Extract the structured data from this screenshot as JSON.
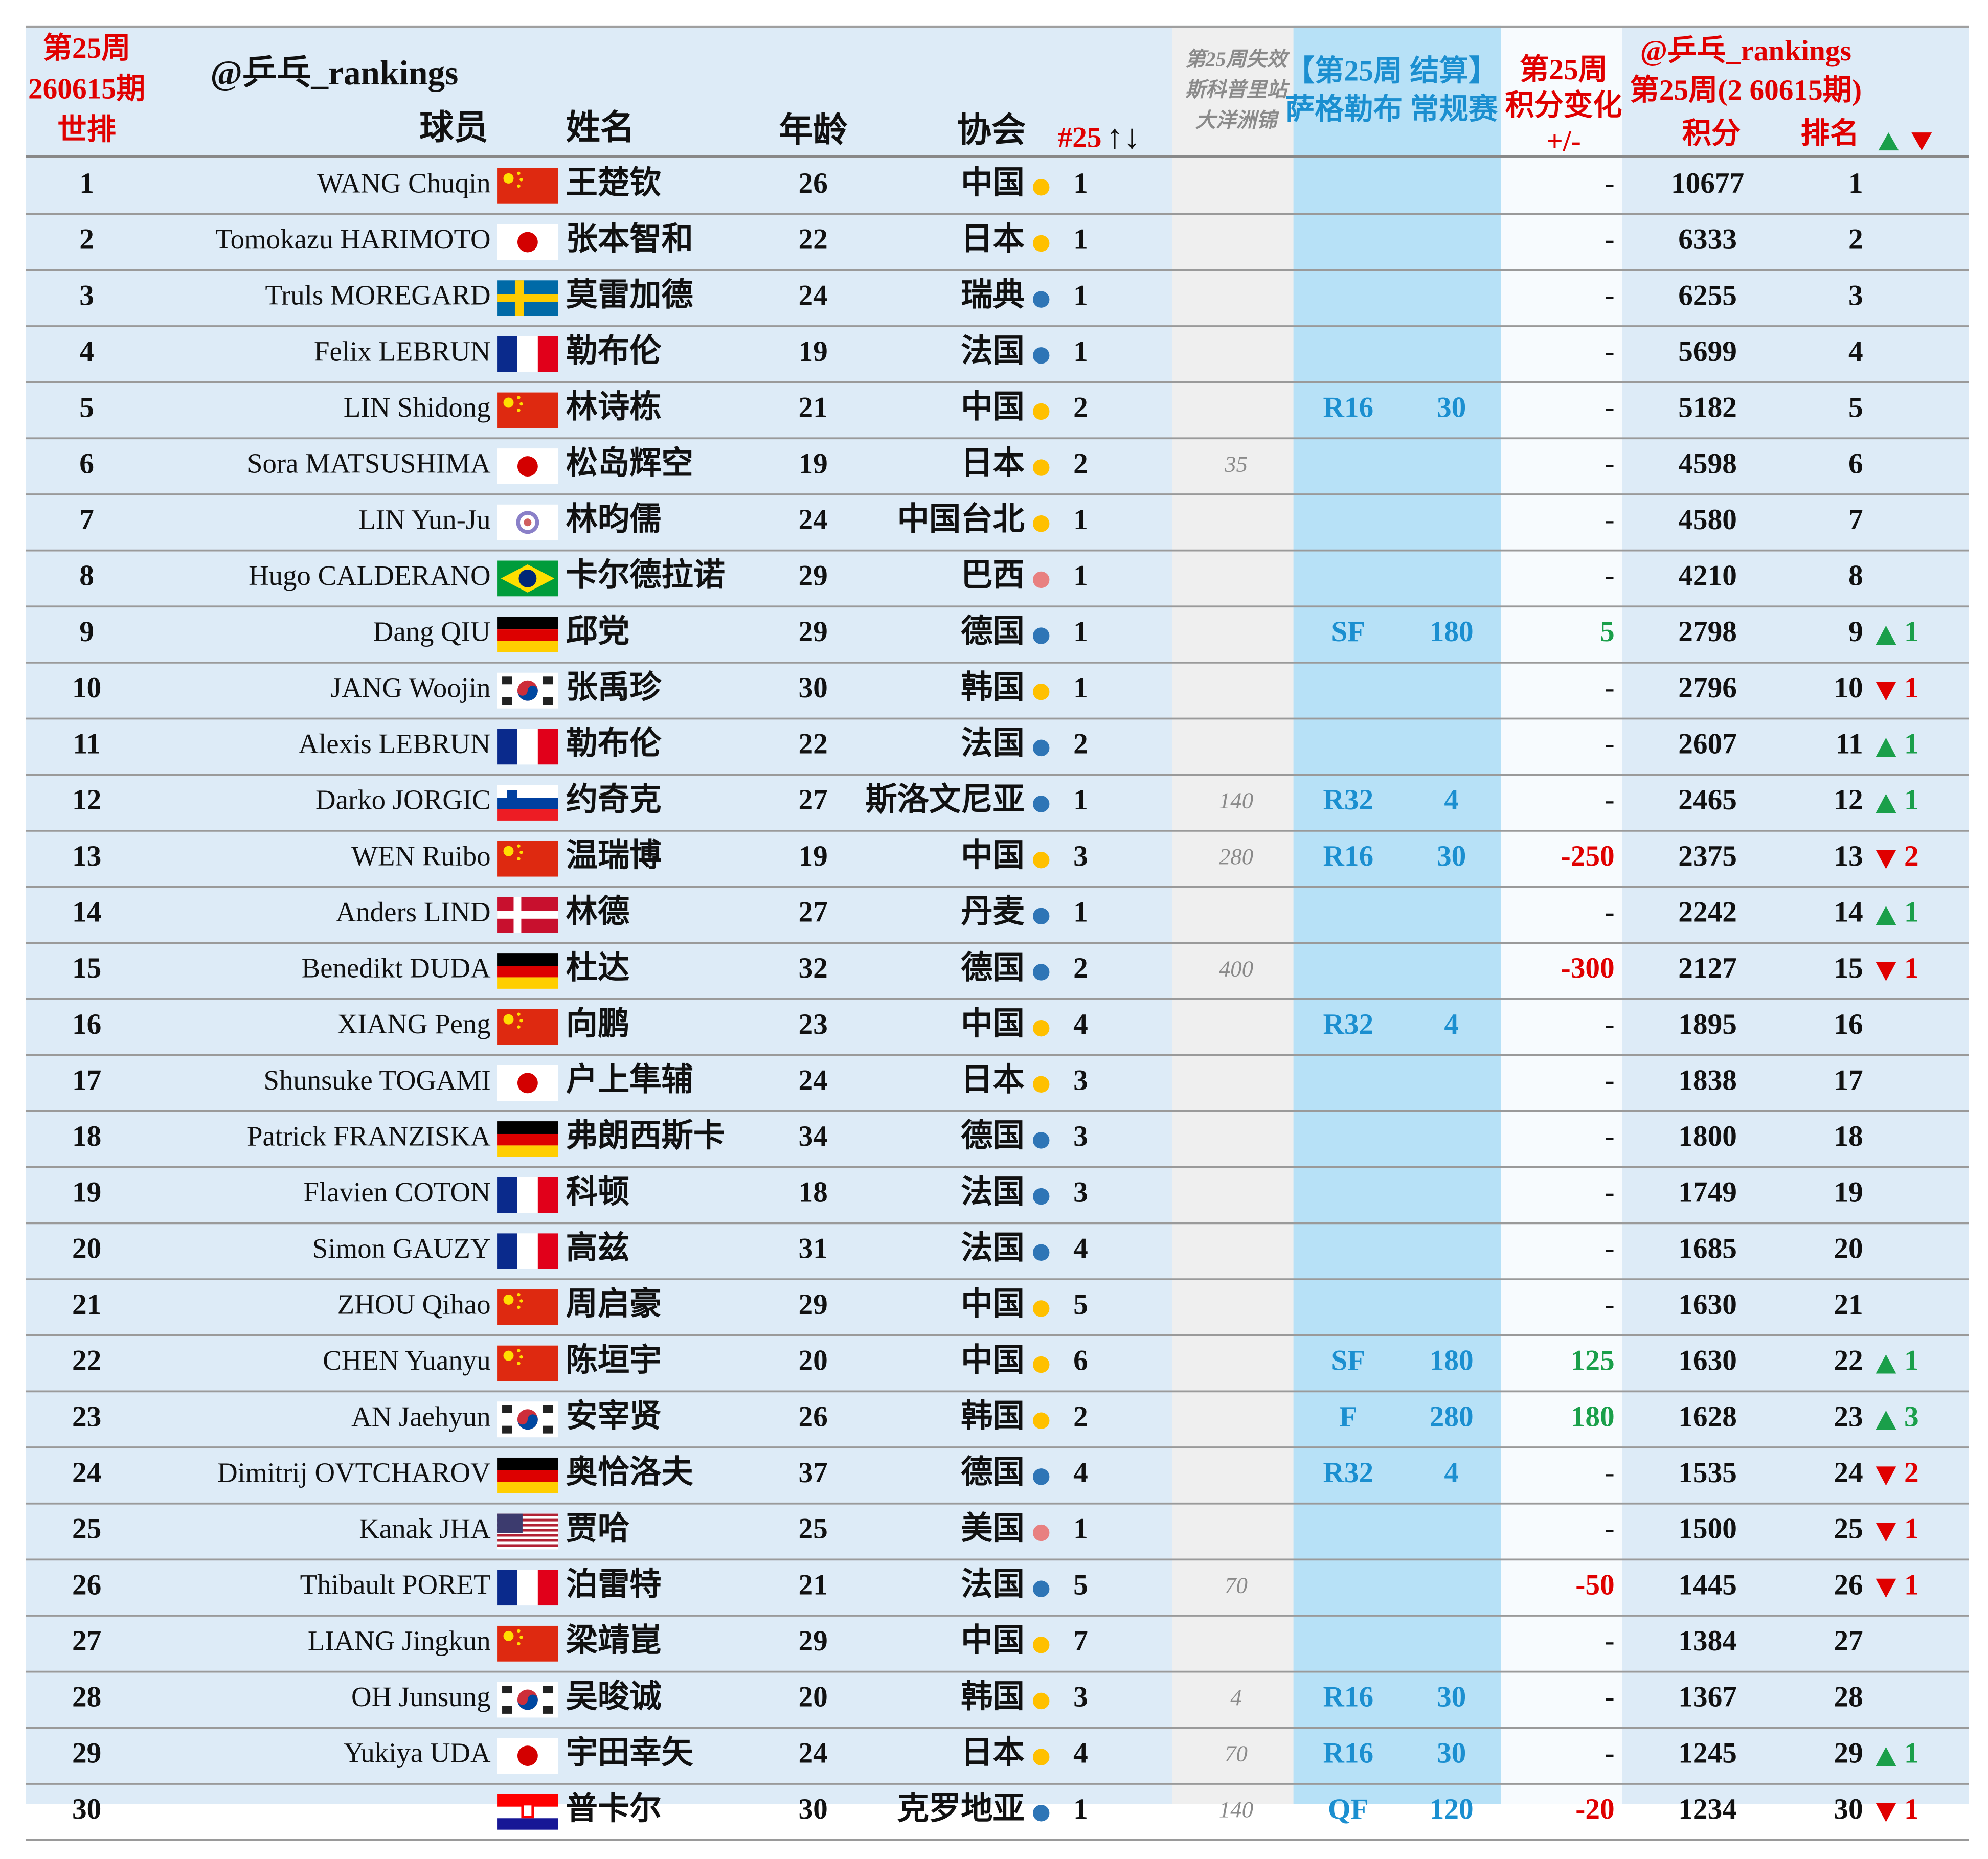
{
  "header": {
    "rank_lines": [
      "第25周",
      "260615期",
      "世排"
    ],
    "handle": "@乒乓_rankings",
    "player": "球员",
    "name": "姓名",
    "age": "年龄",
    "assoc": "协会",
    "n25": "#25",
    "n25_arrows": "↑↓",
    "lost_lines": [
      "第25周失效",
      "斯科普里站",
      "大洋洲锦"
    ],
    "event_lines": [
      "【第25周 结算】",
      "萨格勒布 常规赛"
    ],
    "change_lines": [
      "第25周",
      "积分变化",
      "+/-"
    ],
    "right_lines": [
      "@乒乓_rankings",
      "第25周(2 60615期)"
    ],
    "points": "积分",
    "rank": "排名"
  },
  "rows": [
    {
      "rank": 1,
      "en": "WANG Chuqin",
      "zh": "王楚钦",
      "age": 26,
      "assoc": "中国",
      "dot": "#ffc000",
      "n25": 1,
      "change": "-",
      "points": 10677,
      "new_rank": 1,
      "flag": "cn"
    },
    {
      "rank": 2,
      "en": "Tomokazu HARIMOTO",
      "zh": "张本智和",
      "age": 22,
      "assoc": "日本",
      "dot": "#ffc000",
      "n25": 1,
      "change": "-",
      "points": 6333,
      "new_rank": 2,
      "flag": "jp"
    },
    {
      "rank": 3,
      "en": "Truls MOREGARD",
      "zh": "莫雷加德",
      "age": 24,
      "assoc": "瑞典",
      "dot": "#2e75b6",
      "n25": 1,
      "change": "-",
      "points": 6255,
      "new_rank": 3,
      "flag": "se"
    },
    {
      "rank": 4,
      "en": "Felix LEBRUN",
      "zh": "勒布伦",
      "age": 19,
      "assoc": "法国",
      "dot": "#2e75b6",
      "n25": 1,
      "change": "-",
      "points": 5699,
      "new_rank": 4,
      "flag": "fr"
    },
    {
      "rank": 5,
      "en": "LIN Shidong",
      "zh": "林诗栋",
      "age": 21,
      "assoc": "中国",
      "dot": "#ffc000",
      "n25": 2,
      "round": "R16",
      "pts": 30,
      "change": "-",
      "points": 5182,
      "new_rank": 5,
      "flag": "cn"
    },
    {
      "rank": 6,
      "en": "Sora MATSUSHIMA",
      "zh": "松岛辉空",
      "age": 19,
      "assoc": "日本",
      "dot": "#ffc000",
      "n25": 2,
      "lost": 35,
      "change": "-",
      "points": 4598,
      "new_rank": 6,
      "flag": "jp"
    },
    {
      "rank": 7,
      "en": "LIN Yun-Ju",
      "zh": "林昀儒",
      "age": 24,
      "assoc": "中国台北",
      "dot": "#ffc000",
      "n25": 1,
      "change": "-",
      "points": 4580,
      "new_rank": 7,
      "flag": "tw"
    },
    {
      "rank": 8,
      "en": "Hugo CALDERANO",
      "zh": "卡尔德拉诺",
      "age": 29,
      "assoc": "巴西",
      "dot": "#e88080",
      "n25": 1,
      "change": "-",
      "points": 4210,
      "new_rank": 8,
      "flag": "br"
    },
    {
      "rank": 9,
      "en": "Dang QIU",
      "zh": "邱党",
      "age": 29,
      "assoc": "德国",
      "dot": "#2e75b6",
      "n25": 1,
      "round": "SF",
      "pts": 180,
      "change": 5,
      "points": 2798,
      "new_rank": 9,
      "move": "up",
      "move_n": 1,
      "flag": "de"
    },
    {
      "rank": 10,
      "en": "JANG Woojin",
      "zh": "张禹珍",
      "age": 30,
      "assoc": "韩国",
      "dot": "#ffc000",
      "n25": 1,
      "change": "-",
      "points": 2796,
      "new_rank": 10,
      "move": "down",
      "move_n": 1,
      "flag": "kr"
    },
    {
      "rank": 11,
      "en": "Alexis LEBRUN",
      "zh": "勒布伦",
      "age": 22,
      "assoc": "法国",
      "dot": "#2e75b6",
      "n25": 2,
      "change": "-",
      "points": 2607,
      "new_rank": 11,
      "move": "up",
      "move_n": 1,
      "flag": "fr"
    },
    {
      "rank": 12,
      "en": "Darko JORGIC",
      "zh": "约奇克",
      "age": 27,
      "assoc": "斯洛文尼亚",
      "dot": "#2e75b6",
      "n25": 1,
      "lost": 140,
      "round": "R32",
      "pts": 4,
      "change": "-",
      "points": 2465,
      "new_rank": 12,
      "move": "up",
      "move_n": 1,
      "flag": "si"
    },
    {
      "rank": 13,
      "en": "WEN Ruibo",
      "zh": "温瑞博",
      "age": 19,
      "assoc": "中国",
      "dot": "#ffc000",
      "n25": 3,
      "lost": 280,
      "round": "R16",
      "pts": 30,
      "change": -250,
      "points": 2375,
      "new_rank": 13,
      "move": "down",
      "move_n": 2,
      "flag": "cn"
    },
    {
      "rank": 14,
      "en": "Anders LIND",
      "zh": "林德",
      "age": 27,
      "assoc": "丹麦",
      "dot": "#2e75b6",
      "n25": 1,
      "change": "-",
      "points": 2242,
      "new_rank": 14,
      "move": "up",
      "move_n": 1,
      "flag": "dk"
    },
    {
      "rank": 15,
      "en": "Benedikt DUDA",
      "zh": "杜达",
      "age": 32,
      "assoc": "德国",
      "dot": "#2e75b6",
      "n25": 2,
      "lost": 400,
      "change": -300,
      "points": 2127,
      "new_rank": 15,
      "move": "down",
      "move_n": 1,
      "flag": "de"
    },
    {
      "rank": 16,
      "en": "XIANG Peng",
      "zh": "向鹏",
      "age": 23,
      "assoc": "中国",
      "dot": "#ffc000",
      "n25": 4,
      "round": "R32",
      "pts": 4,
      "change": "-",
      "points": 1895,
      "new_rank": 16,
      "flag": "cn"
    },
    {
      "rank": 17,
      "en": "Shunsuke TOGAMI",
      "zh": "户上隼辅",
      "age": 24,
      "assoc": "日本",
      "dot": "#ffc000",
      "n25": 3,
      "change": "-",
      "points": 1838,
      "new_rank": 17,
      "flag": "jp"
    },
    {
      "rank": 18,
      "en": "Patrick FRANZISKA",
      "zh": "弗朗西斯卡",
      "age": 34,
      "assoc": "德国",
      "dot": "#2e75b6",
      "n25": 3,
      "change": "-",
      "points": 1800,
      "new_rank": 18,
      "flag": "de"
    },
    {
      "rank": 19,
      "en": "Flavien COTON",
      "zh": "科顿",
      "age": 18,
      "assoc": "法国",
      "dot": "#2e75b6",
      "n25": 3,
      "change": "-",
      "points": 1749,
      "new_rank": 19,
      "flag": "fr"
    },
    {
      "rank": 20,
      "en": "Simon GAUZY",
      "zh": "高兹",
      "age": 31,
      "assoc": "法国",
      "dot": "#2e75b6",
      "n25": 4,
      "change": "-",
      "points": 1685,
      "new_rank": 20,
      "flag": "fr"
    },
    {
      "rank": 21,
      "en": "ZHOU Qihao",
      "zh": "周启豪",
      "age": 29,
      "assoc": "中国",
      "dot": "#ffc000",
      "n25": 5,
      "change": "-",
      "points": 1630,
      "new_rank": 21,
      "flag": "cn"
    },
    {
      "rank": 22,
      "en": "CHEN Yuanyu",
      "zh": "陈垣宇",
      "age": 20,
      "assoc": "中国",
      "dot": "#ffc000",
      "n25": 6,
      "round": "SF",
      "pts": 180,
      "change": 125,
      "points": 1630,
      "new_rank": 22,
      "move": "up",
      "move_n": 1,
      "flag": "cn"
    },
    {
      "rank": 23,
      "en": "AN Jaehyun",
      "zh": "安宰贤",
      "age": 26,
      "assoc": "韩国",
      "dot": "#ffc000",
      "n25": 2,
      "round": "F",
      "pts": 280,
      "change": 180,
      "points": 1628,
      "new_rank": 23,
      "move": "up",
      "move_n": 3,
      "flag": "kr"
    },
    {
      "rank": 24,
      "en": "Dimitrij OVTCHAROV",
      "zh": "奥恰洛夫",
      "age": 37,
      "assoc": "德国",
      "dot": "#2e75b6",
      "n25": 4,
      "round": "R32",
      "pts": 4,
      "change": "-",
      "points": 1535,
      "new_rank": 24,
      "move": "down",
      "move_n": 2,
      "flag": "de"
    },
    {
      "rank": 25,
      "en": "Kanak JHA",
      "zh": "贾哈",
      "age": 25,
      "assoc": "美国",
      "dot": "#e88080",
      "n25": 1,
      "change": "-",
      "points": 1500,
      "new_rank": 25,
      "move": "down",
      "move_n": 1,
      "flag": "us"
    },
    {
      "rank": 26,
      "en": "Thibault PORET",
      "zh": "泊雷特",
      "age": 21,
      "assoc": "法国",
      "dot": "#2e75b6",
      "n25": 5,
      "lost": 70,
      "change": -50,
      "points": 1445,
      "new_rank": 26,
      "move": "down",
      "move_n": 1,
      "flag": "fr"
    },
    {
      "rank": 27,
      "en": "LIANG Jingkun",
      "zh": "梁靖崑",
      "age": 29,
      "assoc": "中国",
      "dot": "#ffc000",
      "n25": 7,
      "change": "-",
      "points": 1384,
      "new_rank": 27,
      "flag": "cn"
    },
    {
      "rank": 28,
      "en": "OH Junsung",
      "zh": "吴晙诚",
      "age": 20,
      "assoc": "韩国",
      "dot": "#ffc000",
      "n25": 3,
      "lost": 4,
      "round": "R16",
      "pts": 30,
      "change": "-",
      "points": 1367,
      "new_rank": 28,
      "flag": "kr"
    },
    {
      "rank": 29,
      "en": "Yukiya UDA",
      "zh": "宇田幸矢",
      "age": 24,
      "assoc": "日本",
      "dot": "#ffc000",
      "n25": 4,
      "lost": 70,
      "round": "R16",
      "pts": 30,
      "change": "-",
      "points": 1245,
      "new_rank": 29,
      "move": "up",
      "move_n": 1,
      "flag": "jp"
    },
    {
      "rank": 30,
      "zh": "普卡尔",
      "age": 30,
      "assoc": "克罗地亚",
      "dot": "#2e75b6",
      "n25": 1,
      "lost": 140,
      "round": "QF",
      "pts": 120,
      "change": -20,
      "points": 1234,
      "new_rank": 30,
      "move": "down",
      "move_n": 1,
      "flag": "hr"
    }
  ]
}
